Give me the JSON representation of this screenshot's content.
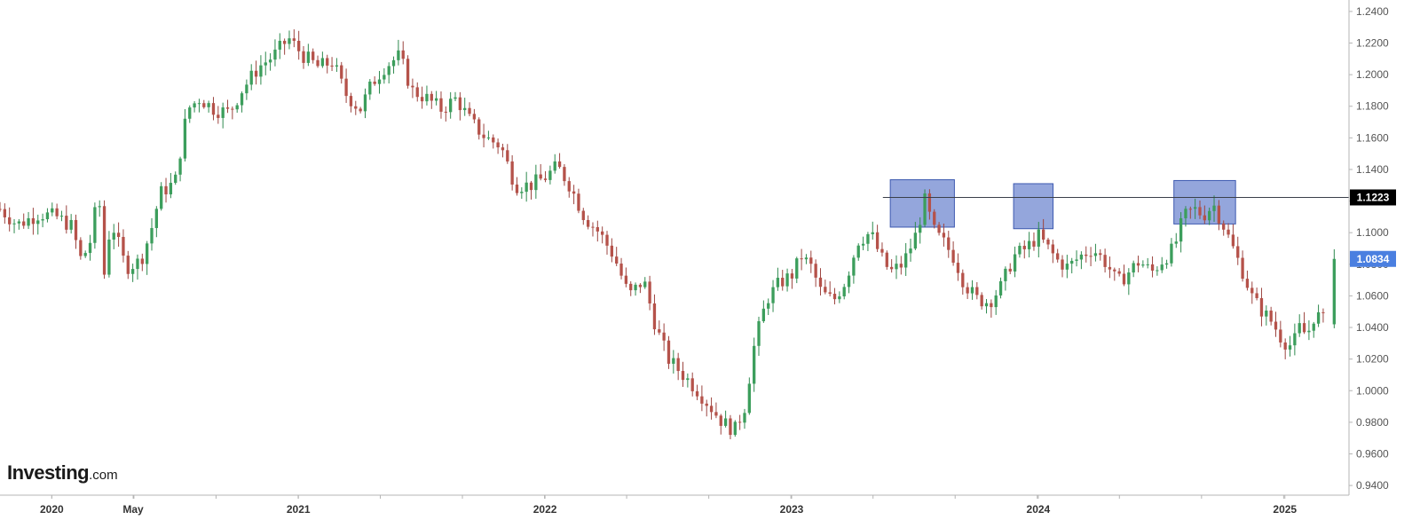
{
  "brand": {
    "name": "Investing",
    "suffix": ".com"
  },
  "chart_data": {
    "type": "candlestick",
    "y_axis": {
      "side": "right",
      "range": [
        0.935,
        1.245
      ],
      "ticks": [
        "1.2400",
        "1.2200",
        "1.2000",
        "1.1800",
        "1.1600",
        "1.1400",
        "1.1200",
        "1.1000",
        "1.0800",
        "1.0600",
        "1.0400",
        "1.0200",
        "1.0000",
        "0.9800",
        "0.9600",
        "0.9400"
      ]
    },
    "x_axis": {
      "labels": [
        {
          "text": "2020",
          "x": 2020.0
        },
        {
          "text": "May",
          "x": 2020.33
        },
        {
          "text": "2021",
          "x": 2021.0
        },
        {
          "text": "2022",
          "x": 2022.0
        },
        {
          "text": "2023",
          "x": 2023.0
        },
        {
          "text": "2024",
          "x": 2024.0
        },
        {
          "text": "2025",
          "x": 2025.0
        }
      ],
      "range": [
        2019.79,
        2025.26
      ]
    },
    "horizontal_line": {
      "value": 1.1223,
      "label": "1.1223",
      "label_bg": "#000000"
    },
    "last_price": {
      "value": 1.0834,
      "label": "1.0834",
      "label_bg": "#4a7fe0"
    },
    "highlight_zones": [
      {
        "x0": 2023.4,
        "x1": 2023.66,
        "y0": 1.1035,
        "y1": 1.1335
      },
      {
        "x0": 2023.9,
        "x1": 2024.06,
        "y0": 1.1025,
        "y1": 1.131
      },
      {
        "x0": 2024.55,
        "x1": 2024.8,
        "y0": 1.1055,
        "y1": 1.133
      }
    ],
    "price_path": [
      [
        2019.79,
        1.115
      ],
      [
        2019.86,
        1.105
      ],
      [
        2019.95,
        1.112
      ],
      [
        2020.02,
        1.11
      ],
      [
        2020.08,
        1.104
      ],
      [
        2020.12,
        1.082
      ],
      [
        2020.16,
        1.096
      ],
      [
        2020.19,
        1.128
      ],
      [
        2020.21,
        1.07
      ],
      [
        2020.24,
        1.108
      ],
      [
        2020.3,
        1.078
      ],
      [
        2020.36,
        1.082
      ],
      [
        2020.4,
        1.1
      ],
      [
        2020.44,
        1.125
      ],
      [
        2020.5,
        1.132
      ],
      [
        2020.55,
        1.178
      ],
      [
        2020.6,
        1.185
      ],
      [
        2020.66,
        1.178
      ],
      [
        2020.72,
        1.176
      ],
      [
        2020.77,
        1.19
      ],
      [
        2020.84,
        1.205
      ],
      [
        2020.9,
        1.212
      ],
      [
        2020.96,
        1.223
      ],
      [
        2021.02,
        1.212
      ],
      [
        2021.08,
        1.205
      ],
      [
        2021.14,
        1.208
      ],
      [
        2021.19,
        1.188
      ],
      [
        2021.25,
        1.178
      ],
      [
        2021.3,
        1.195
      ],
      [
        2021.35,
        1.205
      ],
      [
        2021.41,
        1.212
      ],
      [
        2021.46,
        1.19
      ],
      [
        2021.52,
        1.185
      ],
      [
        2021.58,
        1.178
      ],
      [
        2021.64,
        1.185
      ],
      [
        2021.7,
        1.17
      ],
      [
        2021.76,
        1.16
      ],
      [
        2021.82,
        1.155
      ],
      [
        2021.88,
        1.13
      ],
      [
        2021.94,
        1.13
      ],
      [
        2022.0,
        1.135
      ],
      [
        2022.05,
        1.142
      ],
      [
        2022.1,
        1.13
      ],
      [
        2022.16,
        1.11
      ],
      [
        2022.22,
        1.1
      ],
      [
        2022.28,
        1.085
      ],
      [
        2022.34,
        1.06
      ],
      [
        2022.4,
        1.07
      ],
      [
        2022.45,
        1.04
      ],
      [
        2022.5,
        1.02
      ],
      [
        2022.56,
        1.01
      ],
      [
        2022.62,
        1.0
      ],
      [
        2022.67,
        0.99
      ],
      [
        2022.72,
        0.98
      ],
      [
        2022.77,
        0.975
      ],
      [
        2022.81,
        0.99
      ],
      [
        2022.85,
        1.03
      ],
      [
        2022.9,
        1.058
      ],
      [
        2022.95,
        1.068
      ],
      [
        2023.0,
        1.073
      ],
      [
        2023.04,
        1.085
      ],
      [
        2023.08,
        1.078
      ],
      [
        2023.12,
        1.062
      ],
      [
        2023.17,
        1.057
      ],
      [
        2023.22,
        1.07
      ],
      [
        2023.27,
        1.095
      ],
      [
        2023.32,
        1.1
      ],
      [
        2023.36,
        1.085
      ],
      [
        2023.4,
        1.075
      ],
      [
        2023.45,
        1.08
      ],
      [
        2023.5,
        1.097
      ],
      [
        2023.54,
        1.12
      ],
      [
        2023.58,
        1.1
      ],
      [
        2023.62,
        1.093
      ],
      [
        2023.66,
        1.084
      ],
      [
        2023.7,
        1.068
      ],
      [
        2023.75,
        1.058
      ],
      [
        2023.8,
        1.056
      ],
      [
        2023.85,
        1.066
      ],
      [
        2023.9,
        1.085
      ],
      [
        2023.95,
        1.09
      ],
      [
        2024.0,
        1.098
      ],
      [
        2024.04,
        1.09
      ],
      [
        2024.08,
        1.082
      ],
      [
        2024.12,
        1.078
      ],
      [
        2024.17,
        1.085
      ],
      [
        2024.22,
        1.09
      ],
      [
        2024.28,
        1.08
      ],
      [
        2024.32,
        1.068
      ],
      [
        2024.36,
        1.074
      ],
      [
        2024.41,
        1.082
      ],
      [
        2024.46,
        1.075
      ],
      [
        2024.5,
        1.082
      ],
      [
        2024.55,
        1.09
      ],
      [
        2024.59,
        1.11
      ],
      [
        2024.63,
        1.115
      ],
      [
        2024.67,
        1.111
      ],
      [
        2024.71,
        1.118
      ],
      [
        2024.75,
        1.105
      ],
      [
        2024.79,
        1.09
      ],
      [
        2024.83,
        1.075
      ],
      [
        2024.87,
        1.058
      ],
      [
        2024.91,
        1.05
      ],
      [
        2024.95,
        1.043
      ],
      [
        2024.99,
        1.032
      ],
      [
        2025.03,
        1.028
      ],
      [
        2025.06,
        1.04
      ],
      [
        2025.09,
        1.035
      ],
      [
        2025.12,
        1.048
      ],
      [
        2025.15,
        1.046
      ],
      [
        2025.17,
        1.042
      ]
    ],
    "last_candle": {
      "x": 2025.2,
      "open": 1.042,
      "high": 1.0895,
      "low": 1.0395,
      "close": 1.0834
    },
    "colors": {
      "up": "#3c9e5c",
      "down": "#b5524a",
      "zone": "#5b77c9",
      "line": "#3a3f4a",
      "axis": "#b5b5b5"
    }
  }
}
